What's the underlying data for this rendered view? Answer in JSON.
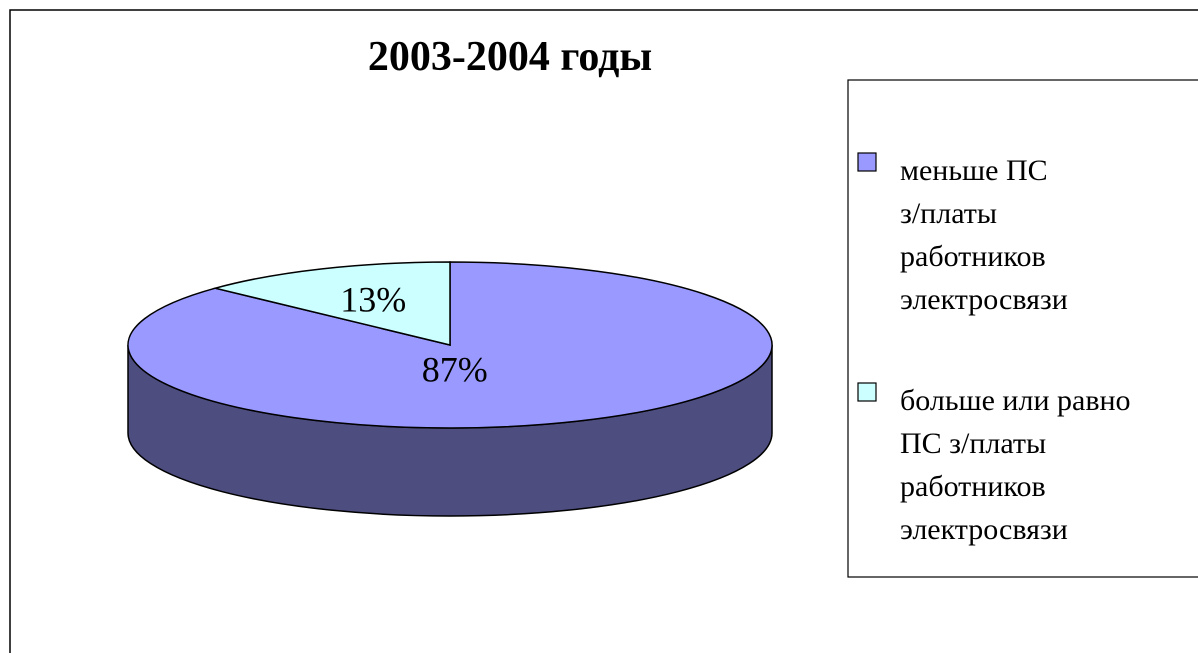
{
  "chart_data": {
    "type": "pie3d",
    "title": "2003-2004  годы",
    "categories": [
      "меньше ПС\nз/платы\nработников\nэлектросвязи",
      "больше или равно\nПС з/платы\nработников\nэлектросвязи"
    ],
    "values": [
      87,
      13
    ],
    "value_labels": [
      "87%",
      "13%"
    ],
    "colors": [
      "#9999ff",
      "#ccffff"
    ],
    "side_colors": [
      "#4d4d80",
      "#668080"
    ],
    "legend": "right"
  }
}
